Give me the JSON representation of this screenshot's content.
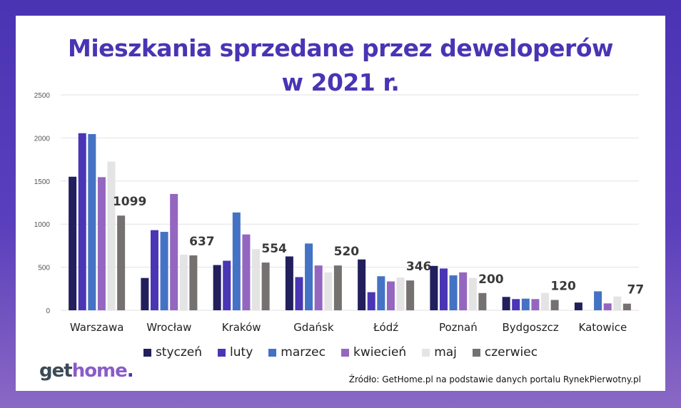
{
  "chart_data": {
    "type": "bar",
    "title": "Mieszkania sprzedane przez deweloperów",
    "title_line2": "w 2021 r.",
    "categories": [
      "Warszawa",
      "Wrocław",
      "Kraków",
      "Gdańsk",
      "Łódź",
      "Poznań",
      "Bydgoszcz",
      "Katowice"
    ],
    "ylim": [
      0,
      2500
    ],
    "yticks": [
      0,
      500,
      1000,
      1500,
      2000,
      2500
    ],
    "grid": true,
    "legend_position": "bottom",
    "series": [
      {
        "name": "styczeń",
        "color": "#221f5c",
        "values": [
          1550,
          375,
          525,
          625,
          590,
          515,
          155,
          90
        ]
      },
      {
        "name": "luty",
        "color": "#4a35b5",
        "values": [
          2055,
          930,
          575,
          385,
          210,
          485,
          130,
          0
        ]
      },
      {
        "name": "marzec",
        "color": "#4472c4",
        "values": [
          2045,
          910,
          1135,
          775,
          395,
          405,
          135,
          220
        ]
      },
      {
        "name": "kwiecień",
        "color": "#9466c0",
        "values": [
          1545,
          1350,
          880,
          520,
          335,
          440,
          130,
          80
        ]
      },
      {
        "name": "maj",
        "color": "#e4e4e4",
        "values": [
          1725,
          645,
          710,
          440,
          380,
          375,
          200,
          160
        ]
      },
      {
        "name": "czerwiec",
        "color": "#767171",
        "values": [
          1099,
          637,
          554,
          520,
          346,
          200,
          120,
          77
        ]
      }
    ],
    "data_labels": [
      "1099",
      "637",
      "554",
      "520",
      "346",
      "200",
      "120",
      "77"
    ]
  },
  "logo": {
    "part1": "get",
    "part2": "home",
    "part3": "."
  },
  "source": "Źródło: GetHome.pl na podstawie danych portalu RynekPierwotny.pl"
}
